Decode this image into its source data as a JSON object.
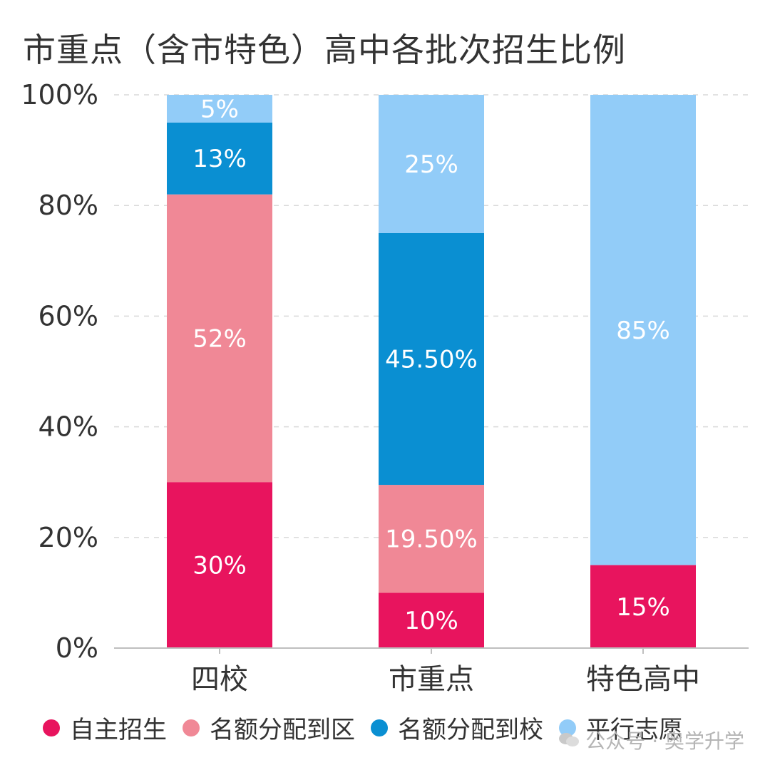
{
  "title": "市重点（含市特色）高中各批次招生比例",
  "watermark": "公众号 · 奥学升学",
  "chart_data": {
    "type": "bar",
    "stacked": true,
    "categories": [
      "四校",
      "市重点",
      "特色高中"
    ],
    "series": [
      {
        "name": "自主招生",
        "color": "#E8145E",
        "values": [
          30,
          10,
          15
        ],
        "labels": [
          "30%",
          "10%",
          "15%"
        ]
      },
      {
        "name": "名额分配到区",
        "color": "#F08896",
        "values": [
          52,
          19.5,
          0
        ],
        "labels": [
          "52%",
          "19.50%",
          ""
        ]
      },
      {
        "name": "名额分配到校",
        "color": "#0A8FD2",
        "values": [
          13,
          45.5,
          0
        ],
        "labels": [
          "13%",
          "45.50%",
          ""
        ]
      },
      {
        "name": "平行志愿",
        "color": "#92CCF8",
        "values": [
          5,
          25,
          85
        ],
        "labels": [
          "5%",
          "25%",
          "85%"
        ]
      }
    ],
    "ylim": [
      0,
      100
    ],
    "yticks": [
      "0%",
      "20%",
      "40%",
      "60%",
      "80%",
      "100%"
    ],
    "grid": true,
    "legend_position": "bottom"
  }
}
